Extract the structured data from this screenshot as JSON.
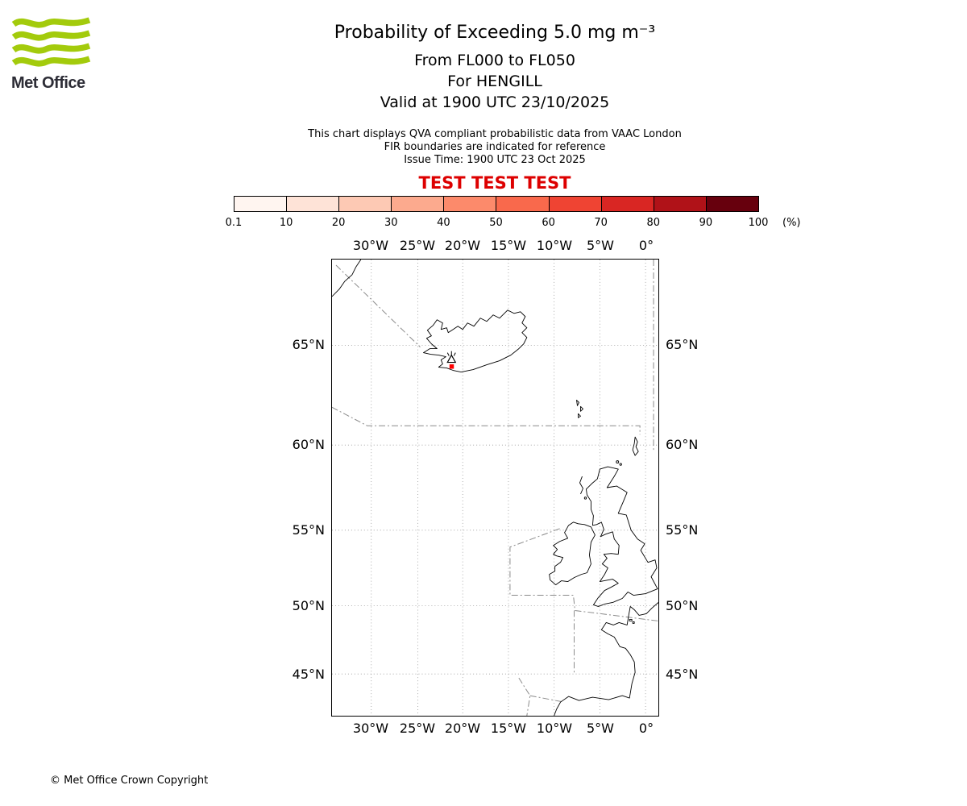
{
  "logo": {
    "text": "Met Office",
    "wave_color": "#a3cb0c"
  },
  "header": {
    "title": "Probability of Exceeding 5.0 mg m⁻³",
    "subtitle_flight_levels": "From FL000 to FL050",
    "subtitle_volcano": "For HENGILL",
    "subtitle_valid": "Valid at 1900 UTC 23/10/2025"
  },
  "notes": {
    "line1": "This chart displays QVA compliant probabilistic data from VAAC London",
    "line2": "FIR boundaries are indicated for reference",
    "line3": "Issue Time: 1900 UTC 23 Oct 2025"
  },
  "test_banner": {
    "text": "TEST TEST TEST",
    "color": "#dd0000"
  },
  "colorbar": {
    "ticks": [
      "0.1",
      "10",
      "20",
      "30",
      "40",
      "50",
      "60",
      "70",
      "80",
      "90",
      "100"
    ],
    "unit_label": "(%)",
    "colors": [
      "#fff5f0",
      "#fee3d7",
      "#fdc9b4",
      "#fcaa8e",
      "#fc8a6b",
      "#f9694c",
      "#ef4433",
      "#d92623",
      "#b01218",
      "#67000d"
    ]
  },
  "map": {
    "x_ticks": [
      "30°W",
      "25°W",
      "20°W",
      "15°W",
      "10°W",
      "5°W",
      "0°"
    ],
    "y_ticks": [
      "65°N",
      "60°N",
      "55°N",
      "50°N",
      "45°N"
    ],
    "volcano": {
      "name": "HENGILL",
      "marker_color": "#ff0000"
    }
  },
  "footer": {
    "copyright": "© Met Office Crown Copyright"
  }
}
